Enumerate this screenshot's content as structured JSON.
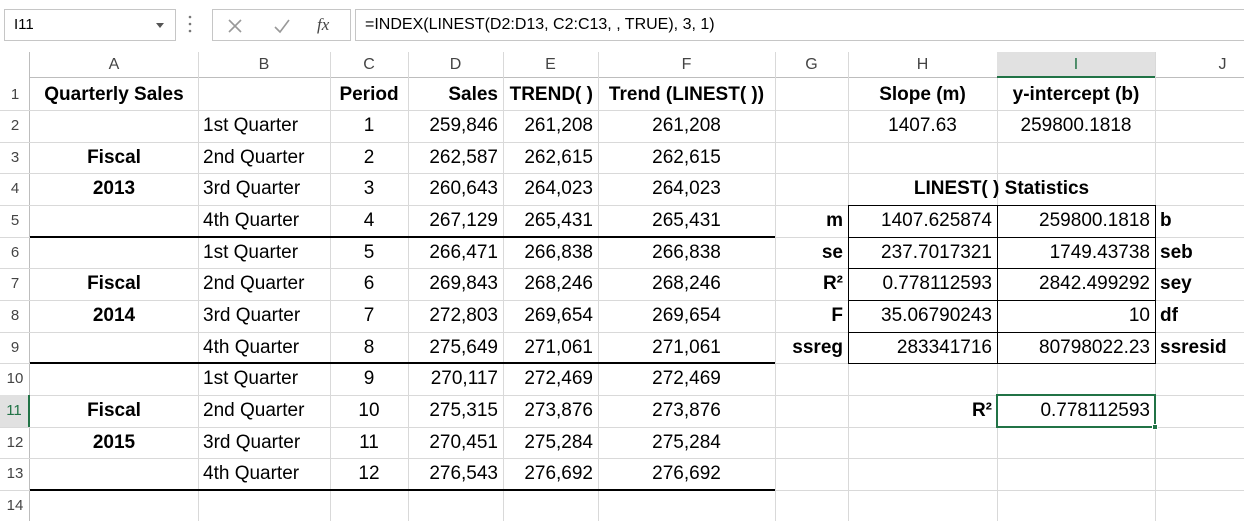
{
  "formula_bar": {
    "name_box": "I11",
    "fx": "fx",
    "formula": "=INDEX(LINEST(D2:D13, C2:C13, , TRUE), 3, 1)"
  },
  "sheet": {
    "columns": [
      "A",
      "B",
      "C",
      "D",
      "E",
      "F",
      "G",
      "H",
      "I",
      "J"
    ],
    "row_headers": [
      "1",
      "2",
      "3",
      "4",
      "5",
      "6",
      "7",
      "8",
      "9",
      "10",
      "11",
      "12",
      "13",
      "14"
    ],
    "rows": [
      [
        "Quarterly Sales",
        null,
        "Period",
        "Sales",
        "TREND( )",
        "Trend (LINEST( ))",
        null,
        "Slope (m)",
        "y-intercept (b)",
        null
      ],
      [
        null,
        "1st Quarter",
        "1",
        "259,846",
        "261,208",
        "261,208",
        null,
        "1407.63",
        "259800.1818",
        null
      ],
      [
        "Fiscal",
        "2nd Quarter",
        "2",
        "262,587",
        "262,615",
        "262,615",
        null,
        null,
        null,
        null
      ],
      [
        "2013",
        "3rd Quarter",
        "3",
        "260,643",
        "264,023",
        "264,023",
        null,
        "LINEST( ) Statistics",
        null,
        null
      ],
      [
        null,
        "4th Quarter",
        "4",
        "267,129",
        "265,431",
        "265,431",
        "m",
        "1407.625874",
        "259800.1818",
        "b"
      ],
      [
        null,
        "1st Quarter",
        "5",
        "266,471",
        "266,838",
        "266,838",
        "se",
        "237.7017321",
        "1749.43738",
        "seb"
      ],
      [
        "Fiscal",
        "2nd Quarter",
        "6",
        "269,843",
        "268,246",
        "268,246",
        "R²",
        "0.778112593",
        "2842.499292",
        "sey"
      ],
      [
        "2014",
        "3rd Quarter",
        "7",
        "272,803",
        "269,654",
        "269,654",
        "F",
        "35.06790243",
        "10",
        "df"
      ],
      [
        null,
        "4th Quarter",
        "8",
        "275,649",
        "271,061",
        "271,061",
        "ssreg",
        "283341716",
        "80798022.23",
        "ssresid"
      ],
      [
        null,
        "1st Quarter",
        "9",
        "270,117",
        "272,469",
        "272,469",
        null,
        null,
        null,
        null
      ],
      [
        "Fiscal",
        "2nd Quarter",
        "10",
        "275,315",
        "273,876",
        "273,876",
        null,
        "R²",
        "0.778112593",
        null
      ],
      [
        "2015",
        "3rd Quarter",
        "11",
        "270,451",
        "275,284",
        "275,284",
        null,
        null,
        null,
        null
      ],
      [
        null,
        "4th Quarter",
        "12",
        "276,543",
        "276,692",
        "276,692",
        null,
        null,
        null,
        null
      ],
      [
        null,
        null,
        null,
        null,
        null,
        null,
        null,
        null,
        null,
        null
      ]
    ]
  }
}
